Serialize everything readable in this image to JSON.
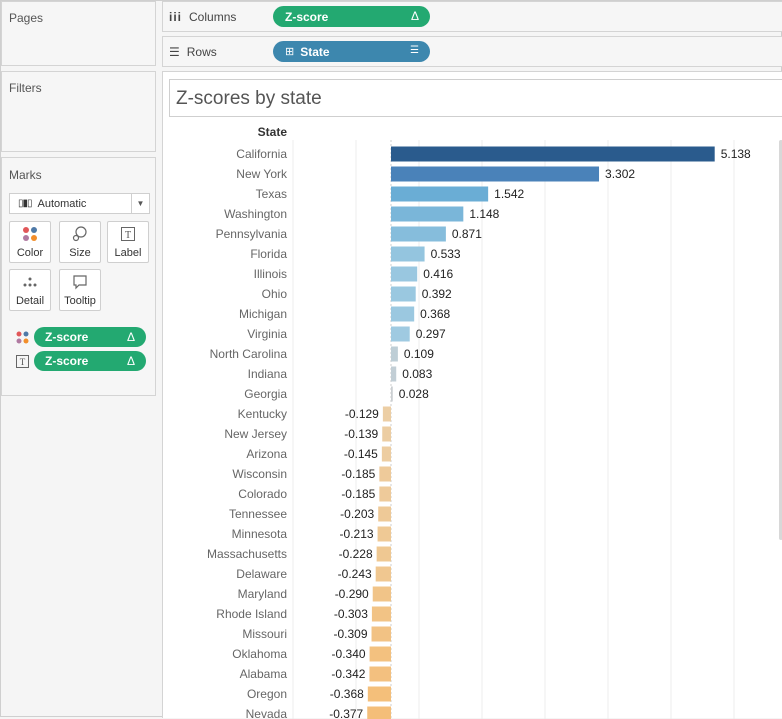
{
  "panels": {
    "pages": "Pages",
    "filters": "Filters",
    "marks": "Marks"
  },
  "shelves": {
    "columns_label": "Columns",
    "columns_pill": "Z-score",
    "columns_pill_icon": "Δ",
    "rows_label": "Rows",
    "rows_pill": "State"
  },
  "marks": {
    "mark_type": "Automatic",
    "buttons": [
      "Color",
      "Size",
      "Label",
      "Detail",
      "Tooltip"
    ],
    "color_field": "Z-score",
    "label_field": "Z-score",
    "field_icon": "Δ"
  },
  "colors": {
    "green_pill": "#23a971",
    "blue_pill": "#3d87ae"
  },
  "chart_data": {
    "type": "bar",
    "orientation": "horizontal",
    "title": "Z-scores by state",
    "row_header": "State",
    "categories": [
      "California",
      "New York",
      "Texas",
      "Washington",
      "Pennsylvania",
      "Florida",
      "Illinois",
      "Ohio",
      "Michigan",
      "Virginia",
      "North Carolina",
      "Indiana",
      "Georgia",
      "Kentucky",
      "New Jersey",
      "Arizona",
      "Wisconsin",
      "Colorado",
      "Tennessee",
      "Minnesota",
      "Massachusetts",
      "Delaware",
      "Maryland",
      "Rhode Island",
      "Missouri",
      "Oklahoma",
      "Alabama",
      "Oregon",
      "Nevada"
    ],
    "values": [
      5.138,
      3.302,
      1.542,
      1.148,
      0.871,
      0.533,
      0.416,
      0.392,
      0.368,
      0.297,
      0.109,
      0.083,
      0.028,
      -0.129,
      -0.139,
      -0.145,
      -0.185,
      -0.185,
      -0.203,
      -0.213,
      -0.228,
      -0.243,
      -0.29,
      -0.303,
      -0.309,
      -0.34,
      -0.342,
      -0.368,
      -0.377
    ],
    "labels": [
      "5.138",
      "3.302",
      "1.542",
      "1.148",
      "0.871",
      "0.533",
      "0.416",
      "0.392",
      "0.368",
      "0.297",
      "0.109",
      "0.083",
      "0.028",
      "-0.129",
      "-0.139",
      "-0.145",
      "-0.185",
      "-0.185",
      "-0.203",
      "-0.213",
      "-0.228",
      "-0.243",
      "-0.290",
      "-0.303",
      "-0.309",
      "-0.340",
      "-0.342",
      "-0.368",
      "-0.377"
    ],
    "xlim": [
      -1,
      6
    ],
    "grid": true,
    "color_scale": "diverging orange-blue by value"
  }
}
